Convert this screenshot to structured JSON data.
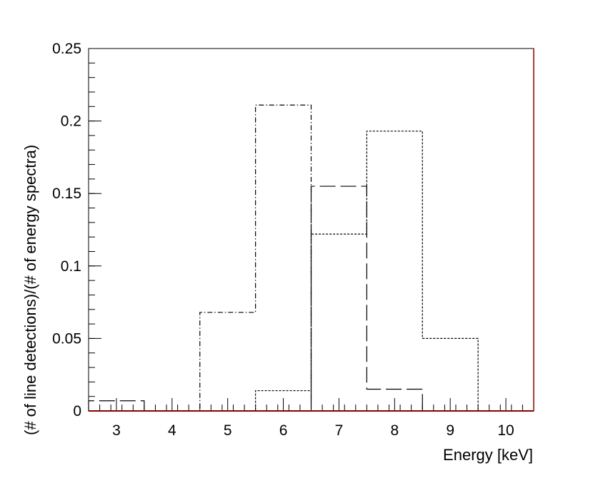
{
  "chart_data": {
    "type": "bar",
    "xlabel": "Energy [keV]",
    "ylabel": "(# of line detections)/(# of energy spectra)",
    "xlim": [
      2.5,
      10.5
    ],
    "ylim": [
      0,
      0.25
    ],
    "x_ticks": [
      "3",
      "4",
      "5",
      "6",
      "7",
      "8",
      "9",
      "10"
    ],
    "y_ticks": [
      "0",
      "0.05",
      "0.1",
      "0.15",
      "0.2",
      "0.25"
    ],
    "grid": false,
    "bin_edges": [
      2.5,
      3.5,
      4.5,
      5.5,
      6.5,
      7.5,
      8.5,
      9.5,
      10.5
    ],
    "series": [
      {
        "line_style": "long-dash",
        "values": [
          0.007,
          0,
          0,
          0,
          0.155,
          0.015,
          0,
          0
        ]
      },
      {
        "line_style": "dash-dot",
        "values": [
          0,
          0,
          0.068,
          0.211,
          0,
          0,
          0,
          0
        ]
      },
      {
        "line_style": "dotted",
        "values": [
          0,
          0,
          0,
          0.014,
          0.122,
          0.193,
          0.05,
          0
        ]
      }
    ],
    "colors": {
      "axis": "#000000",
      "frame_right": "#8b0000",
      "baseline": "#8b0000"
    }
  }
}
